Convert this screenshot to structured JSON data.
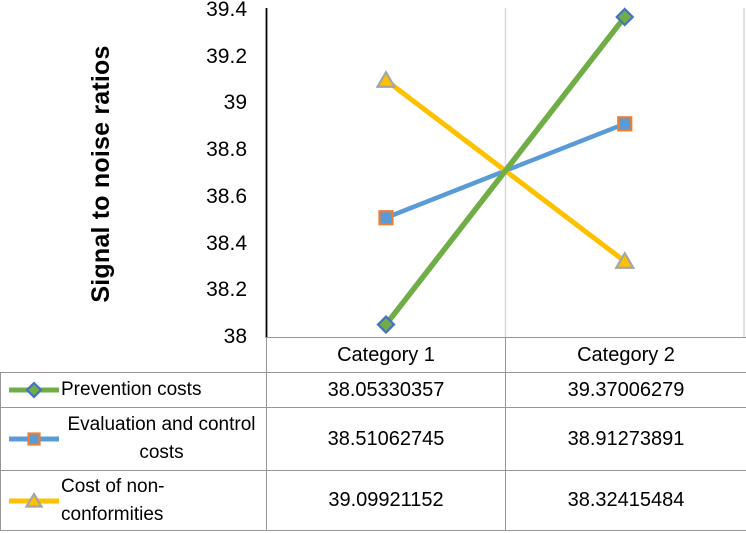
{
  "chart_data": {
    "type": "line",
    "title": "",
    "ylabel": "Signal to noise ratios",
    "xlabel": "",
    "ylim": [
      38,
      39.4
    ],
    "ytick_step": 0.2,
    "yticks": [
      "39.4",
      "39.2",
      "39",
      "38.8",
      "38.6",
      "38.4",
      "38.2",
      "38"
    ],
    "categories": [
      "Category 1",
      "Category 2"
    ],
    "series": [
      {
        "name": "Prevention costs",
        "values": [
          38.05330357,
          39.37006279
        ],
        "line_color": "#70AD47",
        "marker": "diamond",
        "marker_fill": "#70AD47",
        "marker_border": "#4472C4"
      },
      {
        "name": "Evaluation and control costs",
        "values": [
          38.51062745,
          38.91273891
        ],
        "line_color": "#5B9BD5",
        "marker": "square",
        "marker_fill": "#5B9BD5",
        "marker_border": "#ED7D31"
      },
      {
        "name": "Cost of non-conformities",
        "values": [
          39.09921152,
          38.32415484
        ],
        "line_color": "#FFC000",
        "marker": "triangle",
        "marker_fill": "#FFC000",
        "marker_border": "#A5A5A5"
      }
    ],
    "grid": "vertical-category-separator-only",
    "legend_position": "data-table-left-column",
    "axis_color": "#000000",
    "gridline_color": "#D9D9D9",
    "table_border_color": "#969696"
  }
}
